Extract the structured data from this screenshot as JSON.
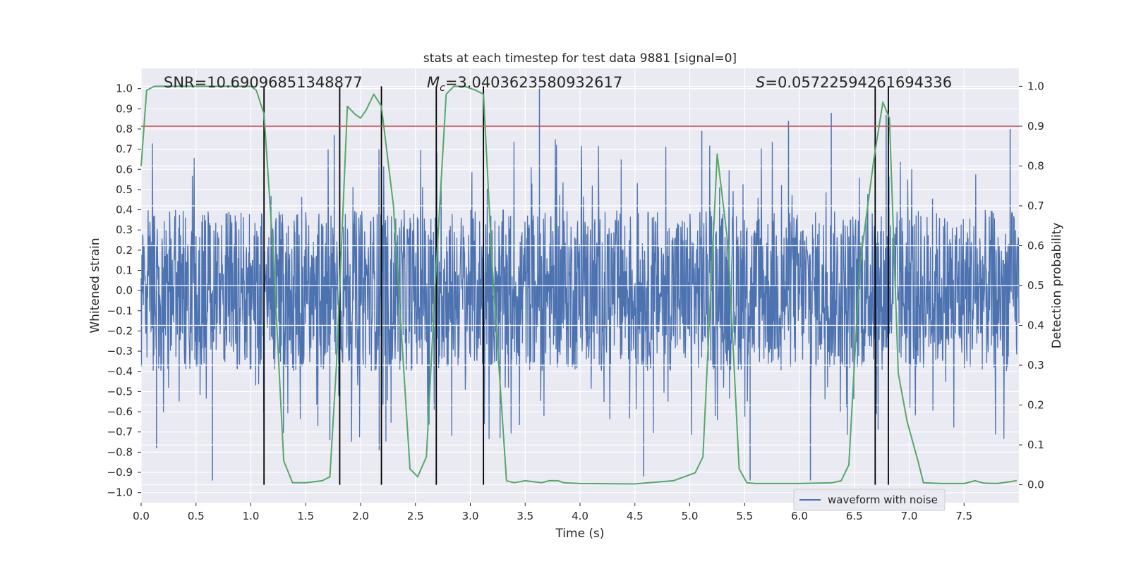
{
  "chart_data": {
    "type": "line",
    "title": "stats at each timestep for test data 9881 [signal=0]",
    "xlabel": "Time (s)",
    "ylabel": "Whitened strain",
    "y2label": "Detection probability",
    "xlim": [
      0.0,
      8.0
    ],
    "ylim": [
      -1.05,
      1.1
    ],
    "y2lim": [
      -0.045,
      1.045
    ],
    "x_ticks": [
      "0.0",
      "0.5",
      "1.0",
      "1.5",
      "2.0",
      "2.5",
      "3.0",
      "3.5",
      "4.0",
      "4.5",
      "5.0",
      "5.5",
      "6.0",
      "6.5",
      "7.0",
      "7.5"
    ],
    "y_ticks": [
      "1.0",
      "0.9",
      "0.8",
      "0.7",
      "0.6",
      "0.5",
      "0.4",
      "0.3",
      "0.2",
      "0.1",
      "0.0",
      "−0.1",
      "−0.2",
      "−0.3",
      "−0.4",
      "−0.5",
      "−0.6",
      "−0.7",
      "−0.8",
      "−0.9",
      "−1.0"
    ],
    "y2_ticks": [
      "1.0",
      "0.9",
      "0.8",
      "0.7",
      "0.6",
      "0.5",
      "0.4",
      "0.3",
      "0.2",
      "0.1",
      "0.0"
    ],
    "grid": true,
    "legend_position": "bottom-right",
    "annotations": {
      "snr": "SNR=10.69096851348877",
      "mc_symbol": "M",
      "mc_sub": "c",
      "mc_value": "=3.0403623580932617",
      "s_symbol": "S",
      "s_value": "=0.05722594261694336"
    },
    "series": [
      {
        "name": "waveform with noise",
        "color": "#4c72b0",
        "kind": "noise",
        "samples": 2400,
        "core_amplitude": 0.4,
        "peaks": [
          {
            "x": 0.65,
            "y": -0.94
          },
          {
            "x": 0.14,
            "y": -0.78
          },
          {
            "x": 1.12,
            "y": -0.7
          },
          {
            "x": 1.72,
            "y": -0.74
          },
          {
            "x": 2.17,
            "y": -0.79
          },
          {
            "x": 3.63,
            "y": 1.0
          },
          {
            "x": 4.58,
            "y": -0.92
          },
          {
            "x": 5.55,
            "y": -0.94
          },
          {
            "x": 6.1,
            "y": -0.94
          },
          {
            "x": 6.29,
            "y": 0.88
          },
          {
            "x": 5.9,
            "y": 0.84
          },
          {
            "x": 6.79,
            "y": 0.87
          },
          {
            "x": 7.92,
            "y": 0.8
          },
          {
            "x": 1.76,
            "y": 0.77
          },
          {
            "x": 5.11,
            "y": 0.79
          }
        ]
      },
      {
        "name": "",
        "color": "#55a868",
        "kind": "probability",
        "axis": "right",
        "x": [
          0.0,
          0.05,
          0.12,
          0.3,
          0.6,
          0.9,
          1.0,
          1.05,
          1.12,
          1.2,
          1.3,
          1.38,
          1.5,
          1.65,
          1.72,
          1.78,
          1.88,
          1.95,
          2.0,
          2.05,
          2.12,
          2.19,
          2.3,
          2.45,
          2.52,
          2.6,
          2.68,
          2.78,
          2.85,
          2.95,
          3.05,
          3.12,
          3.2,
          3.33,
          3.4,
          3.5,
          3.65,
          3.72,
          3.8,
          3.85,
          4.0,
          4.5,
          4.85,
          4.95,
          5.05,
          5.12,
          5.25,
          5.35,
          5.45,
          5.52,
          5.6,
          6.0,
          6.3,
          6.38,
          6.45,
          6.55,
          6.68,
          6.76,
          6.82,
          6.9,
          6.98,
          7.08,
          7.13,
          7.3,
          7.5,
          7.6,
          7.68,
          7.8,
          7.98
        ],
        "y": [
          0.8,
          0.99,
          1.0,
          1.0,
          1.0,
          1.0,
          1.0,
          0.99,
          0.93,
          0.6,
          0.06,
          0.005,
          0.005,
          0.01,
          0.02,
          0.3,
          0.95,
          0.93,
          0.92,
          0.94,
          0.98,
          0.95,
          0.7,
          0.04,
          0.02,
          0.07,
          0.5,
          0.98,
          1.0,
          1.0,
          0.99,
          0.98,
          0.55,
          0.01,
          0.005,
          0.01,
          0.005,
          0.01,
          0.01,
          0.005,
          0.003,
          0.002,
          0.01,
          0.02,
          0.03,
          0.07,
          0.83,
          0.6,
          0.04,
          0.005,
          0.003,
          0.003,
          0.005,
          0.01,
          0.05,
          0.55,
          0.82,
          0.96,
          0.92,
          0.28,
          0.16,
          0.06,
          0.005,
          0.003,
          0.003,
          0.01,
          0.004,
          0.003,
          0.01
        ]
      },
      {
        "name": "",
        "color": "#c44e52",
        "kind": "threshold",
        "axis": "right",
        "y": 0.9
      }
    ],
    "vertical_lines": [
      1.12,
      1.81,
      2.19,
      2.69,
      3.12,
      6.69,
      6.81
    ],
    "vertical_line_color": "#000000",
    "vertical_line_range": [
      0.0,
      1.0
    ]
  }
}
